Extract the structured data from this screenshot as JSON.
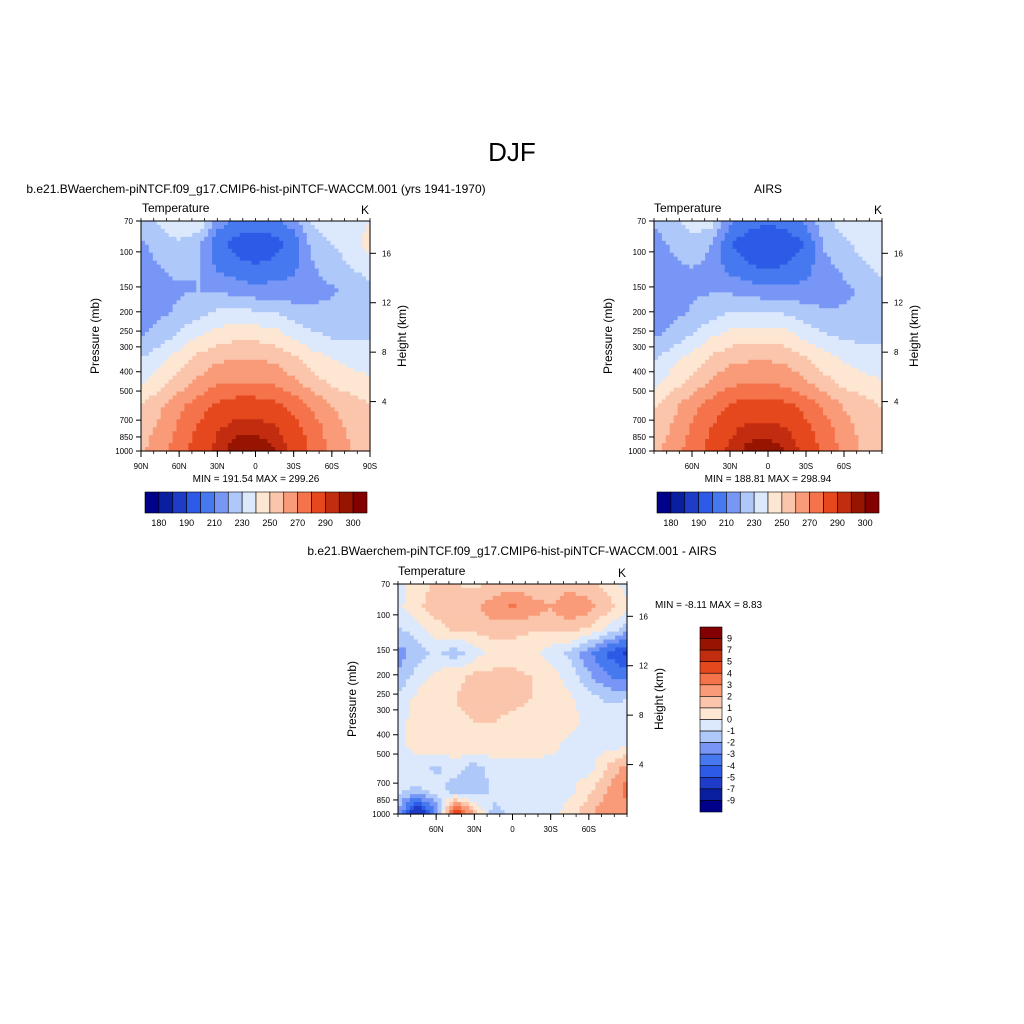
{
  "page": {
    "title": "DJF"
  },
  "panels": [
    {
      "id": "model",
      "header": "b.e21.BWaerchem-piNTCF.f09_g17.CMIP6-hist-piNTCF-WACCM.001 (yrs 1941-1970)",
      "left_label": "Temperature",
      "right_label": "K",
      "stats": "MIN = 191.54  MAX = 299.26",
      "x_ticks": [
        "90N",
        "60N",
        "30N",
        "0",
        "30S",
        "60S",
        "90S"
      ]
    },
    {
      "id": "obs",
      "header": "AIRS",
      "left_label": "Temperature",
      "right_label": "K",
      "stats": "MIN = 188.81  MAX = 298.94",
      "x_ticks": [
        "",
        "60N",
        "30N",
        "0",
        "30S",
        "60S",
        ""
      ]
    },
    {
      "id": "diff",
      "header": "b.e21.BWaerchem-piNTCF.f09_g17.CMIP6-hist-piNTCF-WACCM.001 - AIRS",
      "left_label": "Temperature",
      "right_label": "K",
      "stats": "MIN =  -8.11  MAX =   8.83",
      "x_ticks": [
        "",
        "60N",
        "30N",
        "0",
        "30S",
        "60S",
        ""
      ]
    }
  ],
  "chart_data": [
    {
      "type": "heatmap",
      "title": "b.e21.BWaerchem-piNTCF.f09_g17.CMIP6-hist-piNTCF-WACCM.001 (yrs 1941-1970)",
      "subtitle": "Temperature",
      "units": "K",
      "xlabel": "",
      "ylabel": "Pressure (mb)",
      "ylabel_right": "Height (km)",
      "x": [
        90,
        60,
        30,
        0,
        -30,
        -60,
        -90
      ],
      "x_tick_labels": [
        "90N",
        "60N",
        "30N",
        "0",
        "30S",
        "60S",
        "90S"
      ],
      "y": [
        70,
        100,
        150,
        200,
        250,
        300,
        400,
        500,
        700,
        850,
        1000
      ],
      "y_tick_labels": [
        "70",
        "100",
        "150",
        "200",
        "250",
        "300",
        "400",
        "500",
        "700",
        "850",
        "1000"
      ],
      "y_scale": "log",
      "ylim": [
        1000,
        70
      ],
      "right_y_ticks": [
        4,
        8,
        12,
        16
      ],
      "levels": [
        180,
        185,
        190,
        200,
        210,
        220,
        230,
        240,
        250,
        260,
        270,
        280,
        290,
        295,
        300
      ],
      "colorbar_labels": [
        "180",
        "190",
        "210",
        "230",
        "250",
        "270",
        "290",
        "300"
      ],
      "colors": [
        "#00008b",
        "#0a1ea0",
        "#1e3cc8",
        "#2d5ae6",
        "#4678f0",
        "#7896f5",
        "#afc8fa",
        "#dce9fc",
        "#fde6d2",
        "#fbc5ac",
        "#f99b78",
        "#f5734b",
        "#e6481e",
        "#c32d0f",
        "#961400",
        "#820000"
      ],
      "min": 191.54,
      "max": 299.26,
      "grid_rows": [
        [
          225,
          232,
          238,
          240,
          215,
          208,
          205,
          208,
          215,
          232,
          238,
          236,
          240
        ],
        [
          218,
          225,
          228,
          222,
          203,
          196,
          193,
          196,
          203,
          224,
          230,
          236,
          243
        ],
        [
          215,
          220,
          222,
          220,
          208,
          203,
          201,
          203,
          208,
          219,
          224,
          230,
          236
        ],
        [
          214,
          217,
          219,
          220,
          219,
          216,
          213,
          214,
          214,
          217,
          219,
          222,
          226
        ],
        [
          215,
          218,
          222,
          227,
          232,
          233,
          232,
          230,
          225,
          222,
          222,
          224,
          226
        ],
        [
          220,
          224,
          232,
          240,
          245,
          247,
          247,
          245,
          238,
          232,
          229,
          228,
          229
        ],
        [
          230,
          238,
          245,
          253,
          258,
          260,
          260,
          258,
          252,
          245,
          240,
          237,
          235
        ],
        [
          238,
          246,
          254,
          262,
          268,
          270,
          270,
          268,
          262,
          254,
          248,
          244,
          242
        ],
        [
          250,
          258,
          267,
          275,
          282,
          285,
          285,
          283,
          277,
          268,
          260,
          255,
          250
        ],
        [
          255,
          262,
          272,
          281,
          289,
          293,
          293,
          291,
          284,
          275,
          265,
          258,
          253
        ],
        [
          258,
          266,
          276,
          285,
          293,
          298,
          299,
          296,
          288,
          278,
          268,
          260,
          255
        ]
      ]
    },
    {
      "type": "heatmap",
      "title": "AIRS",
      "subtitle": "Temperature",
      "units": "K",
      "xlabel": "",
      "ylabel": "Pressure (mb)",
      "ylabel_right": "Height (km)",
      "x": [
        60,
        30,
        0,
        -30,
        -60
      ],
      "x_tick_labels": [
        "60N",
        "30N",
        "0",
        "30S",
        "60S"
      ],
      "y": [
        70,
        100,
        150,
        200,
        250,
        300,
        400,
        500,
        700,
        850,
        1000
      ],
      "y_tick_labels": [
        "70",
        "100",
        "150",
        "200",
        "250",
        "300",
        "400",
        "500",
        "700",
        "850",
        "1000"
      ],
      "y_scale": "log",
      "ylim": [
        1000,
        70
      ],
      "right_y_ticks": [
        4,
        8,
        12,
        16
      ],
      "levels": [
        180,
        185,
        190,
        200,
        210,
        220,
        230,
        240,
        250,
        260,
        270,
        280,
        290,
        295,
        300
      ],
      "colorbar_labels": [
        "180",
        "190",
        "210",
        "230",
        "250",
        "270",
        "290",
        "300"
      ],
      "colors": [
        "#00008b",
        "#0a1ea0",
        "#1e3cc8",
        "#2d5ae6",
        "#4678f0",
        "#7896f5",
        "#afc8fa",
        "#dce9fc",
        "#fde6d2",
        "#fbc5ac",
        "#f99b78",
        "#f5734b",
        "#e6481e",
        "#c32d0f",
        "#961400",
        "#820000"
      ],
      "min": 188.81,
      "max": 298.94,
      "grid_rows": [
        [
          222,
          228,
          234,
          236,
          212,
          205,
          202,
          205,
          212,
          228,
          234,
          234,
          238
        ],
        [
          215,
          222,
          226,
          220,
          200,
          193,
          189,
          193,
          200,
          222,
          228,
          234,
          240
        ],
        [
          213,
          218,
          220,
          218,
          206,
          201,
          199,
          201,
          206,
          217,
          222,
          228,
          234
        ],
        [
          213,
          216,
          218,
          219,
          218,
          215,
          212,
          213,
          213,
          216,
          218,
          221,
          225
        ],
        [
          214,
          217,
          221,
          226,
          231,
          232,
          231,
          229,
          224,
          221,
          221,
          223,
          225
        ],
        [
          219,
          223,
          231,
          239,
          244,
          246,
          246,
          244,
          237,
          231,
          228,
          227,
          228
        ],
        [
          229,
          237,
          244,
          252,
          257,
          259,
          259,
          257,
          251,
          244,
          239,
          236,
          234
        ],
        [
          237,
          245,
          253,
          261,
          267,
          269,
          269,
          267,
          261,
          253,
          247,
          243,
          241
        ],
        [
          249,
          257,
          266,
          274,
          281,
          284,
          284,
          282,
          276,
          267,
          259,
          254,
          249
        ],
        [
          254,
          261,
          271,
          280,
          288,
          292,
          292,
          290,
          283,
          274,
          264,
          257,
          252
        ],
        [
          257,
          265,
          275,
          284,
          292,
          297,
          298,
          295,
          287,
          277,
          267,
          259,
          254
        ]
      ]
    },
    {
      "type": "heatmap",
      "title": "b.e21.BWaerchem-piNTCF.f09_g17.CMIP6-hist-piNTCF-WACCM.001 - AIRS",
      "subtitle": "Temperature",
      "units": "K",
      "xlabel": "",
      "ylabel": "Pressure (mb)",
      "ylabel_right": "Height (km)",
      "x": [
        60,
        30,
        0,
        -30,
        -60
      ],
      "x_tick_labels": [
        "60N",
        "30N",
        "0",
        "30S",
        "60S"
      ],
      "y": [
        70,
        100,
        150,
        200,
        250,
        300,
        400,
        500,
        700,
        850,
        1000
      ],
      "y_tick_labels": [
        "70",
        "100",
        "150",
        "200",
        "250",
        "300",
        "400",
        "500",
        "700",
        "850",
        "1000"
      ],
      "y_scale": "log",
      "ylim": [
        1000,
        70
      ],
      "right_y_ticks": [
        4,
        8,
        12,
        16
      ],
      "levels": [
        -9,
        -7,
        -5,
        -4,
        -3,
        -2,
        -1,
        0,
        1,
        2,
        3,
        4,
        5,
        7,
        9
      ],
      "colorbar_labels": [
        "9",
        "7",
        "5",
        "4",
        "3",
        "2",
        "1",
        "0",
        "-1",
        "-2",
        "-3",
        "-4",
        "-5",
        "-7",
        "-9"
      ],
      "colors": [
        "#00008b",
        "#0a1ea0",
        "#1e3cc8",
        "#2d5ae6",
        "#4678f0",
        "#7896f5",
        "#afc8fa",
        "#dce9fc",
        "#fde6d2",
        "#fbc5ac",
        "#f99b78",
        "#f5734b",
        "#e6481e",
        "#c32d0f",
        "#961400",
        "#820000"
      ],
      "min": -8.11,
      "max": 8.83,
      "grid_rows": [
        [
          -0.5,
          0.5,
          1.2,
          1.0,
          0.8,
          1.2,
          1.5,
          1.2,
          1.0,
          1.5,
          1.2,
          0.6,
          -0.5
        ],
        [
          -0.3,
          0.8,
          1.5,
          1.6,
          1.8,
          2.6,
          3.2,
          2.6,
          2.1,
          3.0,
          2.4,
          1.4,
          0.3
        ],
        [
          -1.2,
          -0.5,
          0.6,
          1.1,
          1.2,
          1.5,
          1.3,
          1.1,
          1.0,
          1.2,
          0.8,
          -0.4,
          -1.6
        ],
        [
          -2.5,
          -1.5,
          -0.8,
          -1.6,
          -0.5,
          0.4,
          0.6,
          0.3,
          -0.5,
          -1.2,
          -2.8,
          -4.2,
          -5.2
        ],
        [
          -1.8,
          -0.6,
          0.3,
          0.8,
          1.2,
          1.3,
          1.2,
          1.0,
          0.6,
          -0.5,
          -1.8,
          -3.0,
          -3.5
        ],
        [
          -0.8,
          0.3,
          0.8,
          1.0,
          1.2,
          1.2,
          1.1,
          1.0,
          0.8,
          0.2,
          -0.6,
          -1.2,
          -1.0
        ],
        [
          -0.5,
          0.5,
          0.8,
          0.9,
          1.0,
          1.0,
          0.9,
          0.9,
          0.6,
          0.4,
          -0.3,
          -0.4,
          -0.6
        ],
        [
          -0.3,
          0.4,
          0.6,
          0.7,
          0.8,
          0.8,
          0.8,
          0.6,
          0.4,
          -0.3,
          -0.5,
          -0.4,
          -0.3
        ],
        [
          -0.6,
          -0.4,
          -1.2,
          -0.5,
          -1.5,
          -0.6,
          -0.4,
          -0.3,
          -0.5,
          -0.2,
          -0.5,
          1.2,
          2.5
        ],
        [
          -0.8,
          -1.2,
          -0.6,
          -1.5,
          -1.8,
          -0.7,
          -0.5,
          -0.4,
          -0.6,
          -0.3,
          0.8,
          2.0,
          3.5
        ],
        [
          -2.0,
          -7.5,
          -3.0,
          5.5,
          2.0,
          -1.5,
          -0.6,
          -0.5,
          -0.4,
          0.5,
          1.8,
          2.8,
          2.0
        ]
      ]
    }
  ]
}
